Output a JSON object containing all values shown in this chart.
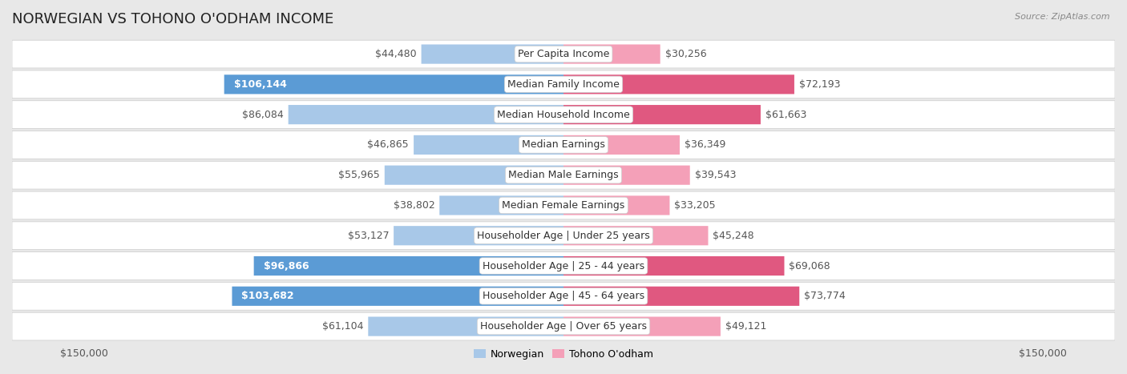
{
  "title": "NORWEGIAN VS TOHONO O'ODHAM INCOME",
  "source": "Source: ZipAtlas.com",
  "categories": [
    "Per Capita Income",
    "Median Family Income",
    "Median Household Income",
    "Median Earnings",
    "Median Male Earnings",
    "Median Female Earnings",
    "Householder Age | Under 25 years",
    "Householder Age | 25 - 44 years",
    "Householder Age | 45 - 64 years",
    "Householder Age | Over 65 years"
  ],
  "norwegian_values": [
    44480,
    106144,
    86084,
    46865,
    55965,
    38802,
    53127,
    96866,
    103682,
    61104
  ],
  "tohono_values": [
    30256,
    72193,
    61663,
    36349,
    39543,
    33205,
    45248,
    69068,
    73774,
    49121
  ],
  "norwegian_labels": [
    "$44,480",
    "$106,144",
    "$86,084",
    "$46,865",
    "$55,965",
    "$38,802",
    "$53,127",
    "$96,866",
    "$103,682",
    "$61,104"
  ],
  "tohono_labels": [
    "$30,256",
    "$72,193",
    "$61,663",
    "$36,349",
    "$39,543",
    "$33,205",
    "$45,248",
    "$69,068",
    "$73,774",
    "$49,121"
  ],
  "norwegian_color_light": "#a8c8e8",
  "norwegian_color_dark": "#5b9bd5",
  "tohono_color_light": "#f4a0b8",
  "tohono_color_dark": "#e05880",
  "norwegian_dark_rows": [
    1,
    7,
    8
  ],
  "tohono_dark_rows": [
    1,
    2,
    7,
    8
  ],
  "max_value": 150000,
  "x_tick_label_left": "$150,000",
  "x_tick_label_right": "$150,000",
  "legend_norwegian": "Norwegian",
  "legend_tohono": "Tohono O'odham",
  "background_color": "#e8e8e8",
  "row_background": "#f0f0f0",
  "title_fontsize": 13,
  "label_fontsize": 9,
  "category_fontsize": 9
}
